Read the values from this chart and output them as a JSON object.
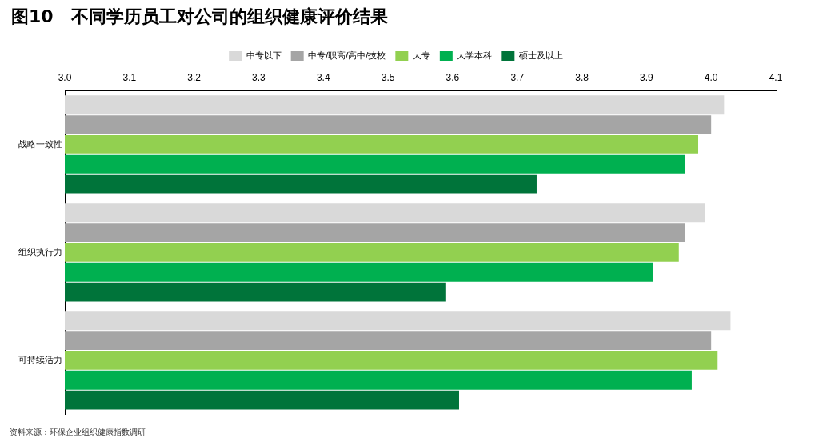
{
  "chart_data": {
    "type": "bar",
    "orientation": "horizontal",
    "title": "图10　不同学历员工对公司的组织健康评价结果",
    "categories": [
      "战略一致性",
      "组织执行力",
      "可持续活力"
    ],
    "series": [
      {
        "name": "中专以下",
        "color": "#d9d9d9",
        "values": [
          4.02,
          3.99,
          4.03
        ]
      },
      {
        "name": "中专/职高/高中/技校",
        "color": "#a5a5a5",
        "values": [
          4.0,
          3.96,
          4.0
        ]
      },
      {
        "name": "大专",
        "color": "#92d050",
        "values": [
          3.98,
          3.95,
          4.01
        ]
      },
      {
        "name": "大学本科",
        "color": "#00b050",
        "values": [
          3.96,
          3.91,
          3.97
        ]
      },
      {
        "name": "硕士及以上",
        "color": "#00743a",
        "values": [
          3.73,
          3.59,
          3.61
        ]
      }
    ],
    "xlim": [
      3.0,
      4.1
    ],
    "xticks": [
      {
        "value": 3,
        "label": "3.0"
      },
      3.1,
      3.2,
      3.3,
      3.4,
      3.5,
      3.6,
      3.7,
      3.8,
      3.9,
      {
        "value": 4,
        "label": "4.0"
      },
      4.1
    ],
    "grid": false,
    "legend": "top",
    "annotations": [
      "资料来源：环保企业组织健康指数调研"
    ]
  }
}
